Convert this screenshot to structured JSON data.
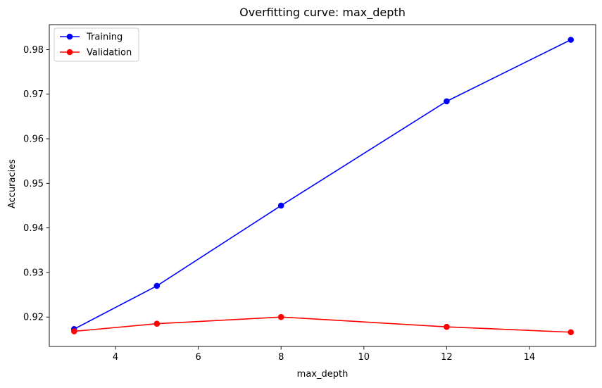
{
  "chart_data": {
    "type": "line",
    "title": "Overfitting curve: max_depth",
    "xlabel": "max_depth",
    "ylabel": "Accuracies",
    "xlim": [
      2.4,
      15.6
    ],
    "ylim": [
      0.9134,
      0.9856
    ],
    "xticks": [
      4,
      6,
      8,
      10,
      12,
      14
    ],
    "yticks": [
      0.92,
      0.93,
      0.94,
      0.95,
      0.96,
      0.97,
      0.98
    ],
    "x": [
      3,
      5,
      8,
      12,
      15
    ],
    "series": [
      {
        "name": "Training",
        "color": "#0000ff",
        "values": [
          0.9173,
          0.927,
          0.945,
          0.9684,
          0.9822
        ]
      },
      {
        "name": "Validation",
        "color": "#ff0000",
        "values": [
          0.9168,
          0.9185,
          0.92,
          0.9178,
          0.9166
        ]
      }
    ],
    "grid": false,
    "legend_position": "upper-left"
  }
}
